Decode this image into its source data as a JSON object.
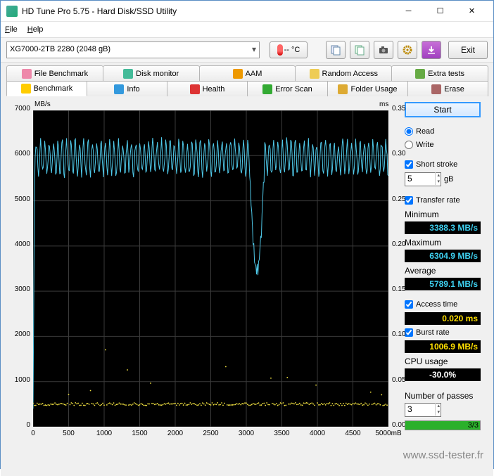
{
  "window": {
    "title": "HD Tune Pro 5.75 - Hard Disk/SSD Utility"
  },
  "menu": {
    "file": "File",
    "help": "Help"
  },
  "toolbar": {
    "drive": "XG7000-2TB 2280 (2048 gB)",
    "temp": "-- °C",
    "exit": "Exit"
  },
  "tabs_top": [
    {
      "label": "File Benchmark",
      "icon": "#e8a"
    },
    {
      "label": "Disk monitor",
      "icon": "#4b9"
    },
    {
      "label": "AAM",
      "icon": "#e90"
    },
    {
      "label": "Random Access",
      "icon": "#ec5"
    },
    {
      "label": "Extra tests",
      "icon": "#6a4"
    }
  ],
  "tabs_bottom": [
    {
      "label": "Benchmark",
      "icon": "#fc0",
      "active": true
    },
    {
      "label": "Info",
      "icon": "#39d"
    },
    {
      "label": "Health",
      "icon": "#d33"
    },
    {
      "label": "Error Scan",
      "icon": "#3a3"
    },
    {
      "label": "Folder Usage",
      "icon": "#da3"
    },
    {
      "label": "Erase",
      "icon": "#a66"
    }
  ],
  "chart": {
    "y_label": "MB/s",
    "y2_label": "ms",
    "y_max": 7000,
    "y_step": 1000,
    "y2_max": 0.35,
    "y2_step": 0.05,
    "x_max": 5000,
    "x_step": 500,
    "x_unit": "mB",
    "transfer_color": "#4fc8e8",
    "access_color": "#f0e040",
    "transfer_band": {
      "low": 5600,
      "high": 6300
    },
    "dip": {
      "start": 3050,
      "end": 3250,
      "low": 3450
    },
    "access_mean": 0.025,
    "bg": "#000000",
    "grid": "#3a3a3a"
  },
  "side": {
    "start": "Start",
    "read": "Read",
    "write": "Write",
    "short_stroke": "Short stroke",
    "short_stroke_val": "5",
    "short_stroke_unit": "gB",
    "transfer_rate": "Transfer rate",
    "minimum": "Minimum",
    "min_val": "3388.3 MB/s",
    "maximum": "Maximum",
    "max_val": "6304.9 MB/s",
    "average": "Average",
    "avg_val": "5789.1 MB/s",
    "access_time": "Access time",
    "access_val": "0.020 ms",
    "burst_rate": "Burst rate",
    "burst_val": "1006.9 MB/s",
    "cpu_usage": "CPU usage",
    "cpu_val": "-30.0%",
    "passes": "Number of passes",
    "passes_val": "3",
    "passes_done": "3/3",
    "progress_pct": 100
  },
  "watermark": "www.ssd-tester.fr"
}
